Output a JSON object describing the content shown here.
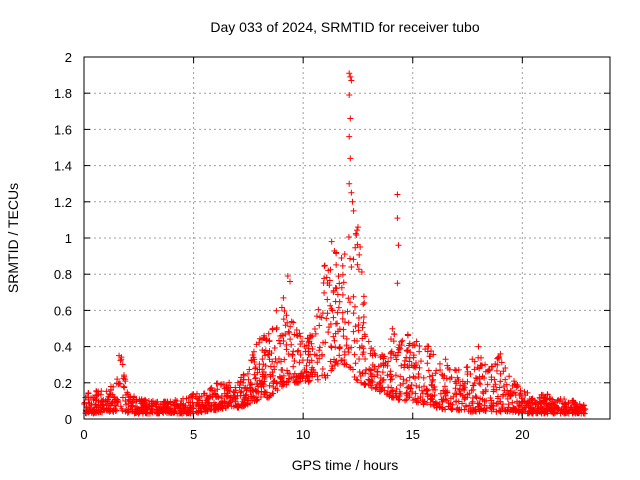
{
  "chart_data": {
    "type": "scatter",
    "title": "Day 033 of 2024, SRMTID for receiver tubo",
    "xlabel": "GPS time / hours",
    "ylabel": "SRMTID / TECUs",
    "xlim": [
      0,
      24
    ],
    "ylim": [
      0,
      2
    ],
    "x_ticks": [
      0,
      5,
      10,
      15,
      20
    ],
    "x_tick_labels": [
      "0",
      "5",
      "10",
      "15",
      "20"
    ],
    "y_ticks": [
      0,
      0.2,
      0.4,
      0.6,
      0.8,
      1,
      1.2,
      1.4,
      1.6,
      1.8,
      2
    ],
    "y_tick_labels": [
      "0",
      "0.2",
      "0.4",
      "0.6",
      "0.8",
      "1",
      "1.2",
      "1.4",
      "1.6",
      "1.8",
      "2"
    ],
    "grid": true,
    "marker": "plus",
    "color": "#ff0000",
    "series": [
      {
        "name": "SRMTID",
        "envelope": {
          "x": [
            0,
            0.5,
            1,
            1.5,
            1.7,
            2,
            3,
            4,
            5,
            5.5,
            6,
            6.5,
            7,
            7.5,
            8,
            8.5,
            9,
            9.5,
            10,
            10.5,
            11,
            11.5,
            12,
            12.5,
            13,
            13.5,
            14,
            14.5,
            15,
            15.5,
            16,
            16.5,
            17,
            17.5,
            18,
            18.5,
            19,
            19.5,
            20,
            20.5,
            21,
            21.5,
            22,
            22.5,
            22.9
          ],
          "high": [
            0.15,
            0.16,
            0.15,
            0.22,
            0.36,
            0.14,
            0.1,
            0.1,
            0.14,
            0.15,
            0.2,
            0.2,
            0.22,
            0.3,
            0.45,
            0.5,
            0.7,
            0.55,
            0.45,
            0.5,
            0.9,
            0.95,
            1.0,
            1.05,
            0.42,
            0.35,
            0.5,
            0.52,
            0.48,
            0.45,
            0.35,
            0.3,
            0.28,
            0.3,
            0.4,
            0.28,
            0.36,
            0.22,
            0.18,
            0.12,
            0.14,
            0.13,
            0.11,
            0.1,
            0.08
          ],
          "low": [
            0.03,
            0.03,
            0.04,
            0.04,
            0.05,
            0.03,
            0.03,
            0.03,
            0.03,
            0.04,
            0.05,
            0.06,
            0.06,
            0.08,
            0.1,
            0.12,
            0.18,
            0.2,
            0.2,
            0.2,
            0.22,
            0.3,
            0.3,
            0.2,
            0.18,
            0.15,
            0.12,
            0.1,
            0.1,
            0.08,
            0.06,
            0.05,
            0.05,
            0.04,
            0.04,
            0.04,
            0.04,
            0.04,
            0.03,
            0.03,
            0.03,
            0.03,
            0.03,
            0.03,
            0.03
          ],
          "count": 1800
        },
        "outliers": [
          {
            "x": 12.1,
            "y": 1.91
          },
          {
            "x": 12.15,
            "y": 1.89
          },
          {
            "x": 12.2,
            "y": 1.87
          },
          {
            "x": 12.1,
            "y": 1.79
          },
          {
            "x": 12.15,
            "y": 1.66
          },
          {
            "x": 12.1,
            "y": 1.56
          },
          {
            "x": 12.15,
            "y": 1.44
          },
          {
            "x": 12.1,
            "y": 1.3
          },
          {
            "x": 12.2,
            "y": 1.25
          },
          {
            "x": 12.25,
            "y": 1.2
          },
          {
            "x": 12.3,
            "y": 1.15
          },
          {
            "x": 14.3,
            "y": 1.24
          },
          {
            "x": 14.3,
            "y": 1.11
          },
          {
            "x": 14.35,
            "y": 0.96
          },
          {
            "x": 14.3,
            "y": 0.75
          },
          {
            "x": 9.3,
            "y": 0.79
          },
          {
            "x": 9.4,
            "y": 0.76
          },
          {
            "x": 11.3,
            "y": 0.98
          },
          {
            "x": 11.5,
            "y": 0.92
          },
          {
            "x": 12.5,
            "y": 1.06
          },
          {
            "x": 12.6,
            "y": 0.95
          },
          {
            "x": 1.6,
            "y": 0.35
          },
          {
            "x": 1.7,
            "y": 0.33
          },
          {
            "x": 18.0,
            "y": 0.4
          },
          {
            "x": 19.0,
            "y": 0.36
          },
          {
            "x": 16.5,
            "y": 0.33
          }
        ]
      }
    ]
  }
}
